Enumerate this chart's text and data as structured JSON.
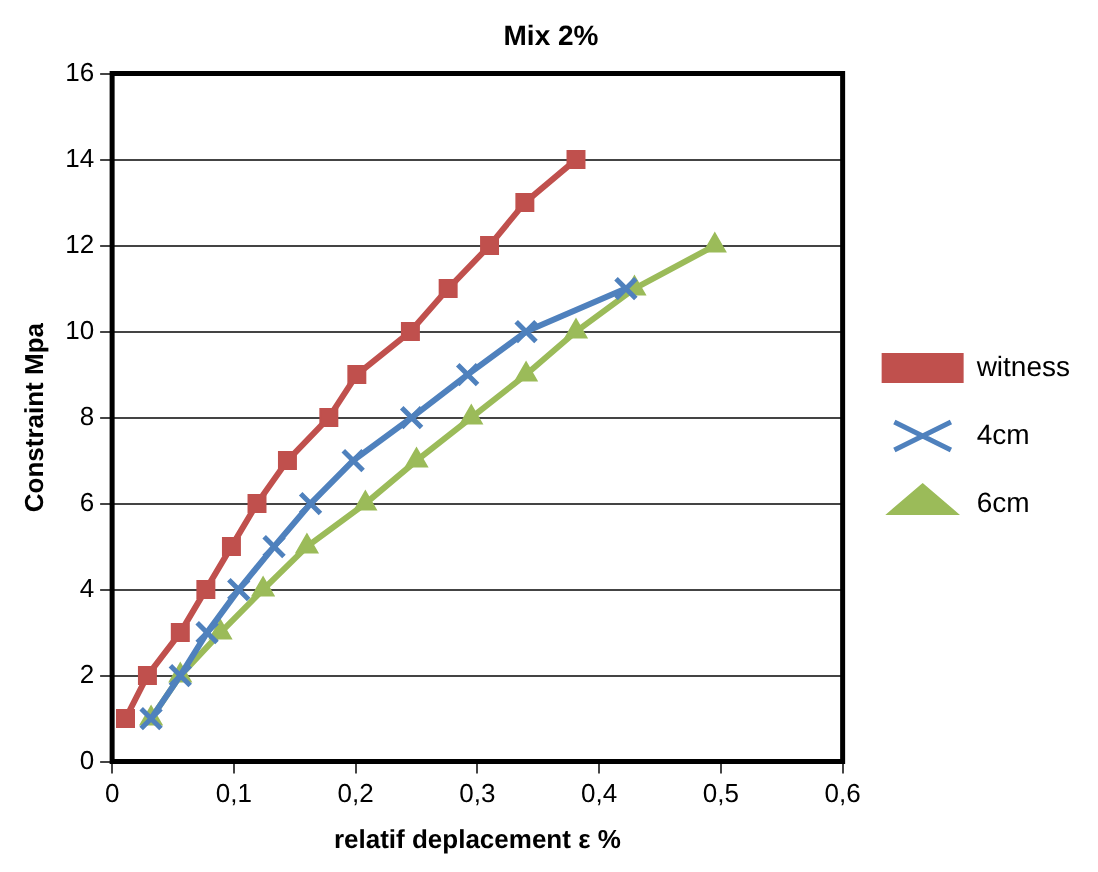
{
  "chart_data": {
    "type": "line",
    "title": "Mix 2%",
    "xlabel": "relatif deplacement ε %",
    "ylabel": "Constraint Mpa",
    "series": [
      {
        "name": "witness",
        "color": "#c0504d",
        "marker": "square",
        "x": [
          0.011,
          0.029,
          0.056,
          0.077,
          0.098,
          0.119,
          0.144,
          0.178,
          0.201,
          0.245,
          0.276,
          0.31,
          0.339,
          0.381
        ],
        "values": [
          1,
          2,
          3,
          4,
          5,
          6,
          7,
          8,
          9,
          10,
          11,
          12,
          13,
          14
        ]
      },
      {
        "name": "4cm",
        "color": "#4f81bd",
        "marker": "cross",
        "x": [
          0.032,
          0.056,
          0.078,
          0.104,
          0.133,
          0.163,
          0.198,
          0.246,
          0.292,
          0.34,
          0.422
        ],
        "values": [
          1,
          2,
          3,
          4,
          5,
          6,
          7,
          8,
          9,
          10,
          11
        ]
      },
      {
        "name": "6cm",
        "color": "#9bbb59",
        "marker": "triangle",
        "x": [
          0.032,
          0.056,
          0.089,
          0.124,
          0.16,
          0.208,
          0.25,
          0.295,
          0.34,
          0.381,
          0.429,
          0.495
        ],
        "values": [
          1,
          2,
          3,
          4,
          5,
          6,
          7,
          8,
          9,
          10,
          11,
          12
        ]
      }
    ],
    "xlim": [
      0,
      0.6
    ],
    "xticks": [
      0,
      {
        "value": 0.1,
        "label": "0,1"
      },
      {
        "value": 0.2,
        "label": "0,2"
      },
      {
        "value": 0.3,
        "label": "0,3"
      },
      {
        "value": 0.4,
        "label": "0,4"
      },
      {
        "value": 0.5,
        "label": "0,5"
      },
      {
        "value": 0.6,
        "label": "0,6"
      }
    ],
    "ylim": [
      0,
      16
    ],
    "yticks": [
      0,
      2,
      4,
      6,
      8,
      10,
      12,
      14,
      16
    ],
    "grid": "y",
    "legend": "right",
    "line_style": "solid"
  }
}
